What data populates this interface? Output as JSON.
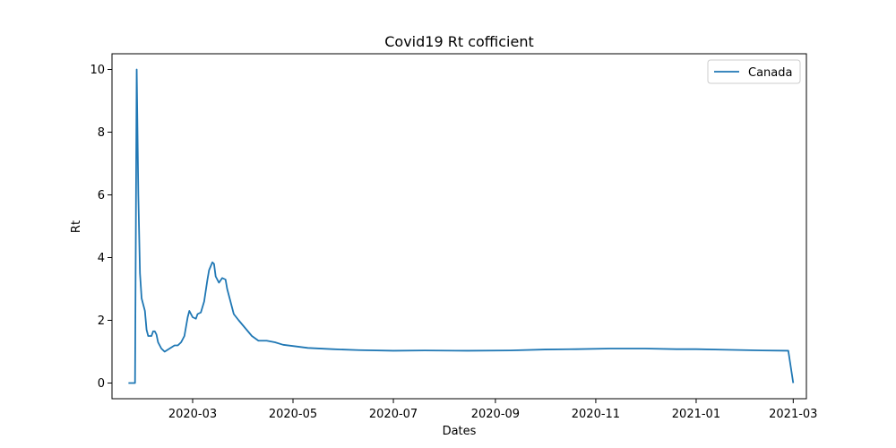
{
  "chart_data": {
    "type": "line",
    "title": "Covid19 Rt cofficient",
    "xlabel": "Dates",
    "ylabel": "Rt",
    "xlim": [
      "2020-01-12",
      "2021-03-09"
    ],
    "ylim": [
      -0.5,
      10.5
    ],
    "x_ticks": [
      "2020-03-01",
      "2020-05-01",
      "2020-07-01",
      "2020-09-01",
      "2020-11-01",
      "2021-01-01",
      "2021-03-01"
    ],
    "x_tick_labels": [
      "2020-03",
      "2020-05",
      "2020-07",
      "2020-09",
      "2020-11",
      "2021-01",
      "2021-03"
    ],
    "y_ticks": [
      0,
      2,
      4,
      6,
      8,
      10
    ],
    "y_tick_labels": [
      "0",
      "2",
      "4",
      "6",
      "8",
      "10"
    ],
    "grid": false,
    "legend": {
      "placement": "top-right"
    },
    "series": [
      {
        "name": "Canada",
        "color": "#1f77b4",
        "points": [
          [
            "2020-01-22",
            0.0
          ],
          [
            "2020-01-26",
            0.0
          ],
          [
            "2020-01-27",
            10.0
          ],
          [
            "2020-01-28",
            6.0
          ],
          [
            "2020-01-29",
            3.5
          ],
          [
            "2020-01-30",
            2.7
          ],
          [
            "2020-02-01",
            2.3
          ],
          [
            "2020-02-02",
            1.7
          ],
          [
            "2020-02-03",
            1.5
          ],
          [
            "2020-02-05",
            1.5
          ],
          [
            "2020-02-06",
            1.65
          ],
          [
            "2020-02-07",
            1.65
          ],
          [
            "2020-02-08",
            1.55
          ],
          [
            "2020-02-09",
            1.3
          ],
          [
            "2020-02-11",
            1.1
          ],
          [
            "2020-02-13",
            1.0
          ],
          [
            "2020-02-16",
            1.1
          ],
          [
            "2020-02-19",
            1.2
          ],
          [
            "2020-02-21",
            1.2
          ],
          [
            "2020-02-23",
            1.3
          ],
          [
            "2020-02-25",
            1.5
          ],
          [
            "2020-02-26",
            1.8
          ],
          [
            "2020-02-27",
            2.1
          ],
          [
            "2020-02-28",
            2.3
          ],
          [
            "2020-03-01",
            2.1
          ],
          [
            "2020-03-03",
            2.05
          ],
          [
            "2020-03-04",
            2.2
          ],
          [
            "2020-03-06",
            2.25
          ],
          [
            "2020-03-08",
            2.6
          ],
          [
            "2020-03-10",
            3.3
          ],
          [
            "2020-03-11",
            3.6
          ],
          [
            "2020-03-13",
            3.85
          ],
          [
            "2020-03-14",
            3.8
          ],
          [
            "2020-03-15",
            3.4
          ],
          [
            "2020-03-17",
            3.2
          ],
          [
            "2020-03-19",
            3.35
          ],
          [
            "2020-03-21",
            3.3
          ],
          [
            "2020-03-22",
            3.0
          ],
          [
            "2020-03-24",
            2.6
          ],
          [
            "2020-03-26",
            2.2
          ],
          [
            "2020-03-29",
            2.0
          ],
          [
            "2020-04-02",
            1.75
          ],
          [
            "2020-04-06",
            1.5
          ],
          [
            "2020-04-10",
            1.35
          ],
          [
            "2020-04-15",
            1.35
          ],
          [
            "2020-04-20",
            1.3
          ],
          [
            "2020-04-25",
            1.22
          ],
          [
            "2020-05-01",
            1.18
          ],
          [
            "2020-05-10",
            1.12
          ],
          [
            "2020-05-25",
            1.08
          ],
          [
            "2020-06-10",
            1.05
          ],
          [
            "2020-07-01",
            1.03
          ],
          [
            "2020-07-20",
            1.04
          ],
          [
            "2020-08-15",
            1.03
          ],
          [
            "2020-09-10",
            1.04
          ],
          [
            "2020-10-01",
            1.07
          ],
          [
            "2020-10-20",
            1.08
          ],
          [
            "2020-11-10",
            1.1
          ],
          [
            "2020-12-01",
            1.1
          ],
          [
            "2020-12-20",
            1.08
          ],
          [
            "2021-01-01",
            1.08
          ],
          [
            "2021-01-20",
            1.06
          ],
          [
            "2021-02-10",
            1.04
          ],
          [
            "2021-02-26",
            1.03
          ],
          [
            "2021-03-01",
            0.0
          ]
        ]
      }
    ]
  }
}
